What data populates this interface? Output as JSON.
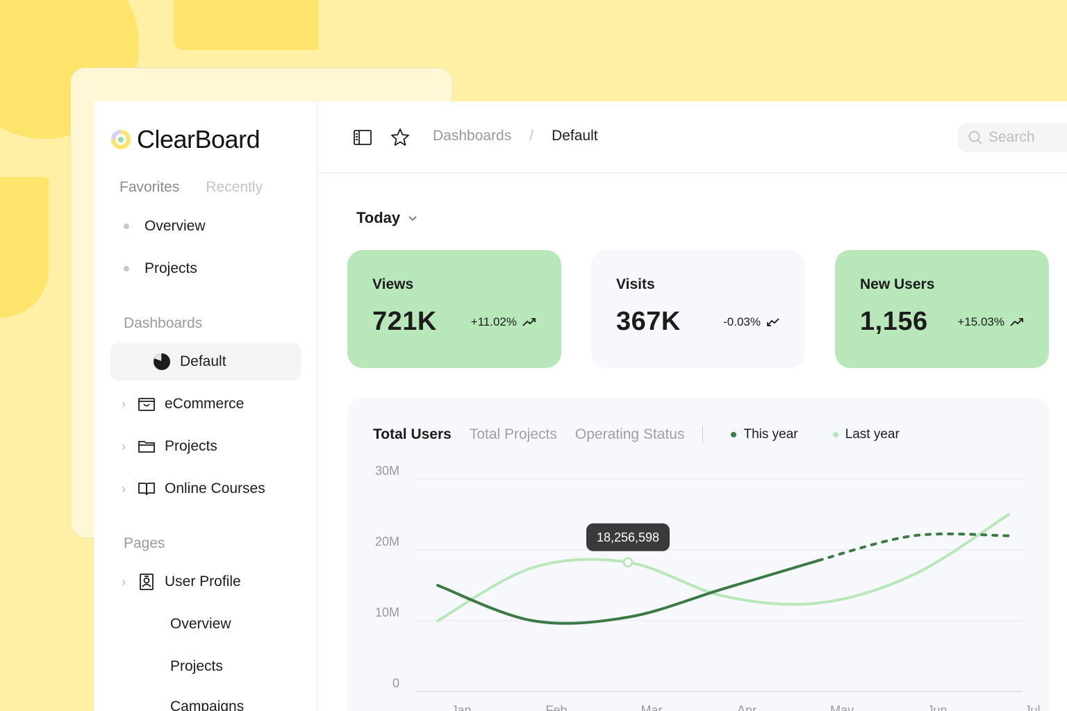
{
  "app": {
    "name": "ClearBoard"
  },
  "sidebar": {
    "tabs": [
      "Favorites",
      "Recently"
    ],
    "favorites": [
      "Overview",
      "Projects"
    ],
    "dashboards_label": "Dashboards",
    "dashboards": [
      {
        "label": "Default",
        "icon": "pie-chart-icon",
        "active": true
      },
      {
        "label": "eCommerce",
        "icon": "shopping-bag-icon",
        "active": false
      },
      {
        "label": "Projects",
        "icon": "folder-icon",
        "active": false
      },
      {
        "label": "Online Courses",
        "icon": "book-open-icon",
        "active": false
      }
    ],
    "pages_label": "Pages",
    "pages": [
      {
        "label": "User Profile",
        "icon": "id-badge-icon"
      }
    ],
    "page_subitems": [
      "Overview",
      "Projects",
      "Campaigns"
    ]
  },
  "topbar": {
    "breadcrumb": [
      "Dashboards",
      "Default"
    ],
    "separator": "/",
    "search_placeholder": "Search"
  },
  "content": {
    "period": "Today",
    "stats": [
      {
        "label": "Views",
        "value": "721K",
        "change": "+11.02%",
        "trend": "up",
        "color": "#B8E7BA"
      },
      {
        "label": "Visits",
        "value": "367K",
        "change": "-0.03%",
        "trend": "down",
        "color": "#F7F8FC"
      },
      {
        "label": "New Users",
        "value": "1,156",
        "change": "+15.03%",
        "trend": "up",
        "color": "#B8E7BA"
      }
    ],
    "chart_tabs": [
      "Total Users",
      "Total Projects",
      "Operating Status"
    ],
    "legend": [
      {
        "label": "This year",
        "color": "#3B7A44"
      },
      {
        "label": "Last year",
        "color": "#B8E7BA"
      }
    ]
  },
  "chart_data": {
    "type": "line",
    "title": "Total Users",
    "categories": [
      "Jan",
      "Feb",
      "Mar",
      "Apr",
      "May",
      "Jun",
      "Jul"
    ],
    "ylim": [
      0,
      30000000
    ],
    "yticks": [
      "0",
      "10M",
      "20M",
      "30M"
    ],
    "series": [
      {
        "name": "This year",
        "values": [
          15000000,
          10000000,
          10500000,
          14500000,
          18500000,
          22000000,
          22000000
        ],
        "forecast_from_index": 4
      },
      {
        "name": "Last year",
        "values": [
          10000000,
          17500000,
          18256598,
          13500000,
          12500000,
          16500000,
          25000000
        ]
      }
    ],
    "tooltip": {
      "series": "Last year",
      "category": "Mar",
      "label": "18,256,598"
    },
    "colors": {
      "this_year": "#3B7A44",
      "last_year": "#B8E7BA"
    }
  }
}
